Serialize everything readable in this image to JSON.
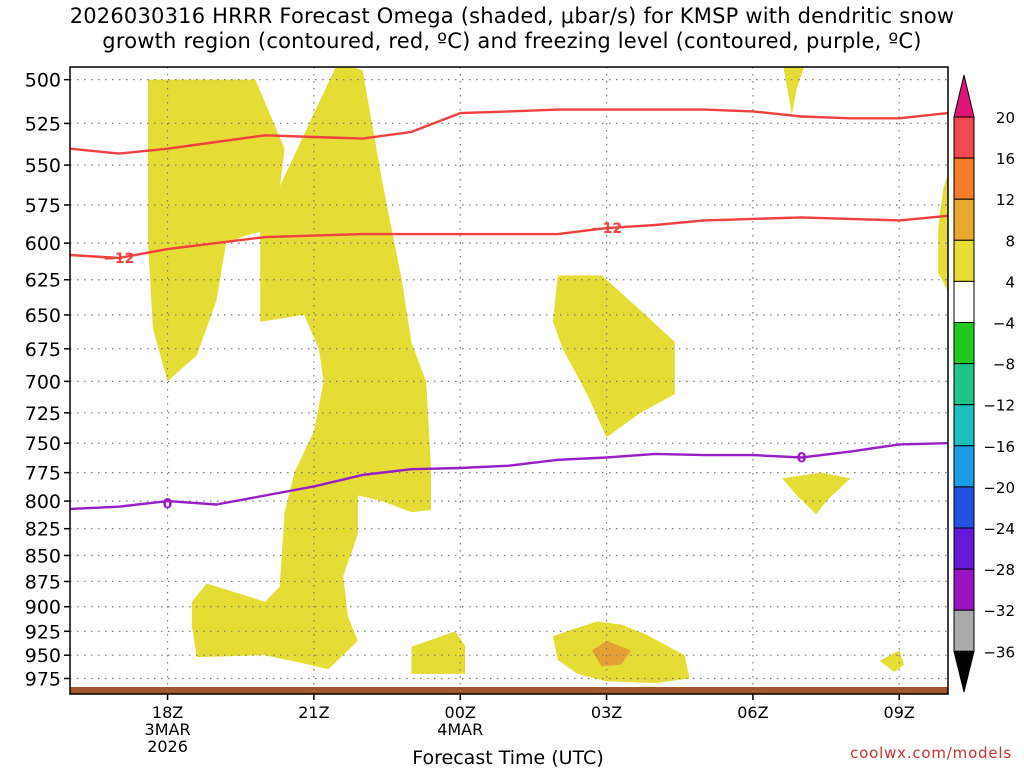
{
  "title_line1": "2026030316 HRRR Forecast Omega (shaded, μbar/s) for KMSP with dendritic snow",
  "title_line2": "growth region (contoured, red, ºC) and freezing level (contoured, purple, ºC)",
  "credit": "coolwx.com/models",
  "chart_data": {
    "type": "time-height",
    "xlabel": "Forecast Time (UTC)",
    "x_range_hours": [
      -2.0,
      16.0
    ],
    "x_ticks": [
      {
        "hour": 0,
        "lines": [
          "18Z",
          "3MAR",
          "2026"
        ]
      },
      {
        "hour": 3,
        "lines": [
          "21Z"
        ]
      },
      {
        "hour": 6,
        "lines": [
          "00Z",
          "4MAR"
        ]
      },
      {
        "hour": 9,
        "lines": [
          "03Z"
        ]
      },
      {
        "hour": 12,
        "lines": [
          "06Z"
        ]
      },
      {
        "hour": 15,
        "lines": [
          "09Z"
        ]
      }
    ],
    "y_range_mb": [
      992,
      493
    ],
    "y_scale": "log",
    "y_ticks": [
      500,
      525,
      550,
      575,
      600,
      625,
      650,
      675,
      700,
      725,
      750,
      775,
      800,
      825,
      850,
      875,
      900,
      925,
      950,
      975
    ],
    "grid": true,
    "colorbar": {
      "labels": [
        "20",
        "16",
        "12",
        "8",
        "4",
        "−4",
        "−8",
        "−12",
        "−16",
        "−20",
        "−24",
        "−28",
        "−32",
        "−36"
      ],
      "colors": [
        "#f04a50",
        "#f47c2a",
        "#e8a82e",
        "#e8dc36",
        "#ffffff",
        "#22c822",
        "#1fc38a",
        "#1fbdbd",
        "#1e9be6",
        "#2252e0",
        "#6418d8",
        "#9a14c4",
        "#aaaaaa"
      ],
      "top_arrow": "#e0157a",
      "bottom_arrow": "#000000"
    },
    "shading": {
      "color_4_8": "#e5dc35",
      "color_8_12": "#e5a033",
      "regions": [
        {
          "level": "4-8",
          "pts": [
            [
              -0.4,
              500
            ],
            [
              1.8,
              500
            ],
            [
              2.4,
              540
            ],
            [
              2.2,
              590
            ],
            [
              1.6,
              595
            ],
            [
              1.2,
              600
            ],
            [
              1.0,
              640
            ],
            [
              0.6,
              680
            ],
            [
              0.0,
              700
            ],
            [
              -0.3,
              660
            ],
            [
              -0.4,
              600
            ]
          ]
        },
        {
          "level": "4-8",
          "pts": [
            [
              1.9,
              590
            ],
            [
              3.5,
              490
            ],
            [
              4.0,
              495
            ],
            [
              4.4,
              560
            ],
            [
              4.8,
              625
            ],
            [
              5.0,
              670
            ],
            [
              5.3,
              700
            ],
            [
              5.4,
              770
            ],
            [
              5.4,
              808
            ],
            [
              5.0,
              810
            ],
            [
              4.4,
              800
            ],
            [
              3.9,
              795
            ],
            [
              3.9,
              830
            ],
            [
              3.6,
              870
            ],
            [
              3.7,
              910
            ],
            [
              3.9,
              935
            ],
            [
              3.3,
              965
            ],
            [
              2.9,
              960
            ],
            [
              2.0,
              950
            ],
            [
              0.6,
              952
            ],
            [
              0.5,
              920
            ],
            [
              0.5,
              895
            ],
            [
              0.8,
              877
            ],
            [
              2.0,
              895
            ],
            [
              2.3,
              880
            ],
            [
              2.4,
              810
            ],
            [
              2.6,
              775
            ],
            [
              3.0,
              740
            ],
            [
              3.2,
              700
            ],
            [
              3.1,
              675
            ],
            [
              2.8,
              650
            ],
            [
              1.9,
              655
            ],
            [
              1.9,
              605
            ]
          ]
        },
        {
          "level": "4-8",
          "pts": [
            [
              5.0,
              941
            ],
            [
              5.9,
              925
            ],
            [
              6.1,
              940
            ],
            [
              6.1,
              970
            ],
            [
              5.0,
              970
            ]
          ]
        },
        {
          "level": "4-8",
          "pts": [
            [
              8.0,
              622
            ],
            [
              8.9,
              622
            ],
            [
              9.8,
              650
            ],
            [
              10.4,
              670
            ],
            [
              10.4,
              710
            ],
            [
              9.7,
              725
            ],
            [
              9.0,
              745
            ],
            [
              8.6,
              710
            ],
            [
              8.1,
              675
            ],
            [
              7.9,
              655
            ]
          ]
        },
        {
          "level": "4-8",
          "pts": [
            [
              7.9,
              930
            ],
            [
              8.8,
              915
            ],
            [
              9.3,
              918
            ],
            [
              9.8,
              928
            ],
            [
              10.6,
              950
            ],
            [
              10.7,
              975
            ],
            [
              10.0,
              980
            ],
            [
              9.0,
              978
            ],
            [
              8.4,
              970
            ],
            [
              8.0,
              955
            ]
          ]
        },
        {
          "level": "4-8",
          "pts": [
            [
              12.6,
              780
            ],
            [
              13.4,
              775
            ],
            [
              14.0,
              780
            ],
            [
              13.5,
              800
            ],
            [
              13.3,
              812
            ],
            [
              12.9,
              795
            ]
          ]
        },
        {
          "level": "4-8",
          "pts": [
            [
              14.6,
              956
            ],
            [
              15.0,
              945
            ],
            [
              15.1,
              960
            ],
            [
              14.9,
              968
            ]
          ]
        },
        {
          "level": "4-8",
          "pts": [
            [
              12.6,
              489
            ],
            [
              13.1,
              489
            ],
            [
              12.9,
              505
            ],
            [
              12.8,
              520
            ]
          ]
        },
        {
          "level": "4-8",
          "pts": [
            [
              15.9,
              565
            ],
            [
              16.0,
              555
            ],
            [
              16.1,
              640
            ],
            [
              15.8,
              620
            ],
            [
              15.8,
              590
            ]
          ]
        },
        {
          "level": "8-12",
          "pts": [
            [
              8.7,
              945
            ],
            [
              9.0,
              935
            ],
            [
              9.5,
              945
            ],
            [
              9.3,
              960
            ],
            [
              8.9,
              962
            ]
          ]
        }
      ]
    },
    "contours": [
      {
        "name": "red",
        "color": "#f04040",
        "label": "−12",
        "label_at": [
          [
            -1.0,
            610
          ],
          [
            9.0,
            590
          ]
        ],
        "x": [
          -2.0,
          -1.0,
          0.0,
          1.0,
          2.0,
          3.0,
          4.0,
          5.0,
          6.0,
          7.0,
          8.0,
          9.0,
          10.0,
          11.0,
          12.0,
          13.0,
          14.0,
          15.0,
          16.0
        ],
        "y": [
          608,
          610,
          604,
          600,
          596,
          595,
          594,
          594,
          594,
          594,
          594,
          590,
          588,
          585,
          584,
          583,
          584,
          585,
          582
        ]
      },
      {
        "name": "red",
        "color": "#f04040",
        "label": "",
        "x": [
          -2.0,
          -1.0,
          0.0,
          1.0,
          2.0,
          3.0,
          4.0,
          5.0,
          6.0,
          7.0,
          8.0,
          9.0,
          10.0,
          11.0,
          12.0,
          13.0,
          14.0,
          15.0,
          16.0
        ],
        "y": [
          540,
          543,
          540,
          536,
          532,
          533,
          534,
          530,
          519,
          518,
          517,
          517,
          517,
          517,
          518,
          521,
          522,
          522,
          519
        ]
      },
      {
        "name": "purple",
        "color": "#9a1ec8",
        "label": "0",
        "label_at": [
          [
            0.0,
            802
          ],
          [
            13.0,
            762
          ]
        ],
        "x": [
          -2.0,
          -1.0,
          0.0,
          1.0,
          2.0,
          3.0,
          4.0,
          5.0,
          6.0,
          7.0,
          8.0,
          9.0,
          10.0,
          11.0,
          12.0,
          13.0,
          14.0,
          15.0,
          16.0
        ],
        "y": [
          807,
          805,
          800,
          803,
          795,
          787,
          777,
          772,
          771,
          769,
          764,
          762,
          759,
          760,
          760,
          762,
          757,
          751,
          750
        ]
      }
    ],
    "surface_strip_color": "#a2572a"
  }
}
